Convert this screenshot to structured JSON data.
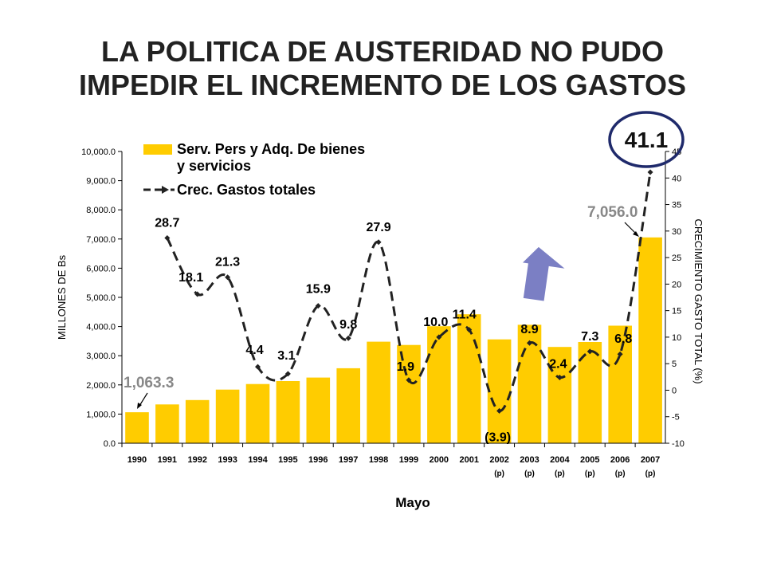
{
  "title": {
    "line1": "LA POLITICA DE AUSTERIDAD NO PUDO",
    "line2": "IMPEDIR EL INCREMENTO DE LOS GASTOS"
  },
  "chart_data": {
    "type": "bar",
    "categories": [
      "1990",
      "1991",
      "1992",
      "1993",
      "1994",
      "1995",
      "1996",
      "1997",
      "1998",
      "1999",
      "2000",
      "2001",
      "2002",
      "2003",
      "2004",
      "2005",
      "2006",
      "2007"
    ],
    "category_subs": [
      "",
      "",
      "",
      "",
      "",
      "",
      "",
      "",
      "",
      "",
      "",
      "",
      "(p)",
      "(p)",
      "(p)",
      "(p)",
      "(p)",
      "(p)"
    ],
    "series": [
      {
        "name": "Serv. Pers y Adq. De bienes y servicios",
        "type": "bar",
        "axis": "left",
        "color": "#FFCC00",
        "values": [
          1063.3,
          1330,
          1480,
          1840,
          2030,
          2130,
          2250,
          2570,
          3480,
          3370,
          4010,
          4420,
          3560,
          4060,
          3300,
          3470,
          4030,
          7056.0
        ]
      },
      {
        "name": "Crec. Gastos totales",
        "type": "line",
        "axis": "right",
        "color": "#222222",
        "values": [
          null,
          28.7,
          18.1,
          21.3,
          4.4,
          3.1,
          15.9,
          9.8,
          27.9,
          1.9,
          10.0,
          11.4,
          -3.9,
          8.9,
          2.4,
          7.3,
          6.8,
          41.1
        ],
        "labels": [
          "",
          "28.7",
          "18.1",
          "21.3",
          "4.4",
          "3.1",
          "15.9",
          "9.8",
          "27.9",
          "1.9",
          "10.0",
          "11.4",
          "(3.9)",
          "8.9",
          "2.4",
          "7.3",
          "6.8",
          "41.1"
        ]
      }
    ],
    "bar_callouts": [
      {
        "index": 0,
        "text": "1,063.3"
      },
      {
        "index": 17,
        "text": "7,056.0"
      }
    ],
    "highlight_label": "41.1",
    "highlight_color": "#1F2A6B",
    "arrow_color": "#7B7FC4",
    "xlabel": "Mayo",
    "ylabel": "MILLONES DE Bs",
    "y2label": "CRECIMIENTO GASTO TOTAL (%)",
    "ylim": [
      0,
      10000
    ],
    "yticks": [
      "0.0",
      "1,000.0",
      "2,000.0",
      "3,000.0",
      "4,000.0",
      "5,000.0",
      "6,000.0",
      "7,000.0",
      "8,000.0",
      "9,000.0",
      "10,000.0"
    ],
    "y2lim": [
      -10,
      45
    ],
    "y2ticks": [
      "-10",
      "-5",
      "0",
      "5",
      "10",
      "15",
      "20",
      "25",
      "30",
      "35",
      "40",
      "45"
    ],
    "grid": false,
    "legend_position": "top-left"
  }
}
